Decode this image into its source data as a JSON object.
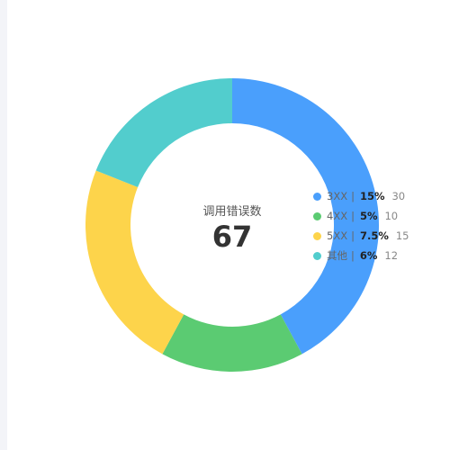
{
  "chart_data": {
    "type": "pie",
    "variant": "donut",
    "title": "",
    "center": {
      "label": "调用错误数",
      "value": "67"
    },
    "legend_position": "right",
    "categories": [
      "3XX",
      "4XX",
      "5XX",
      "其他"
    ],
    "values": [
      30,
      10,
      15,
      12
    ],
    "slice_values": [
      40,
      15,
      22,
      18
    ],
    "legend": [
      {
        "name": "3XX",
        "percent": "15%",
        "count": "30",
        "color": "#4a9ffc"
      },
      {
        "name": "4XX",
        "percent": "5%",
        "count": "10",
        "color": "#5bcb72"
      },
      {
        "name": "5XX",
        "percent": "7.5%",
        "count": "15",
        "color": "#fdd44b"
      },
      {
        "name": "其他",
        "percent": "6%",
        "count": "12",
        "color": "#52cdcd"
      }
    ],
    "separator": "|"
  }
}
